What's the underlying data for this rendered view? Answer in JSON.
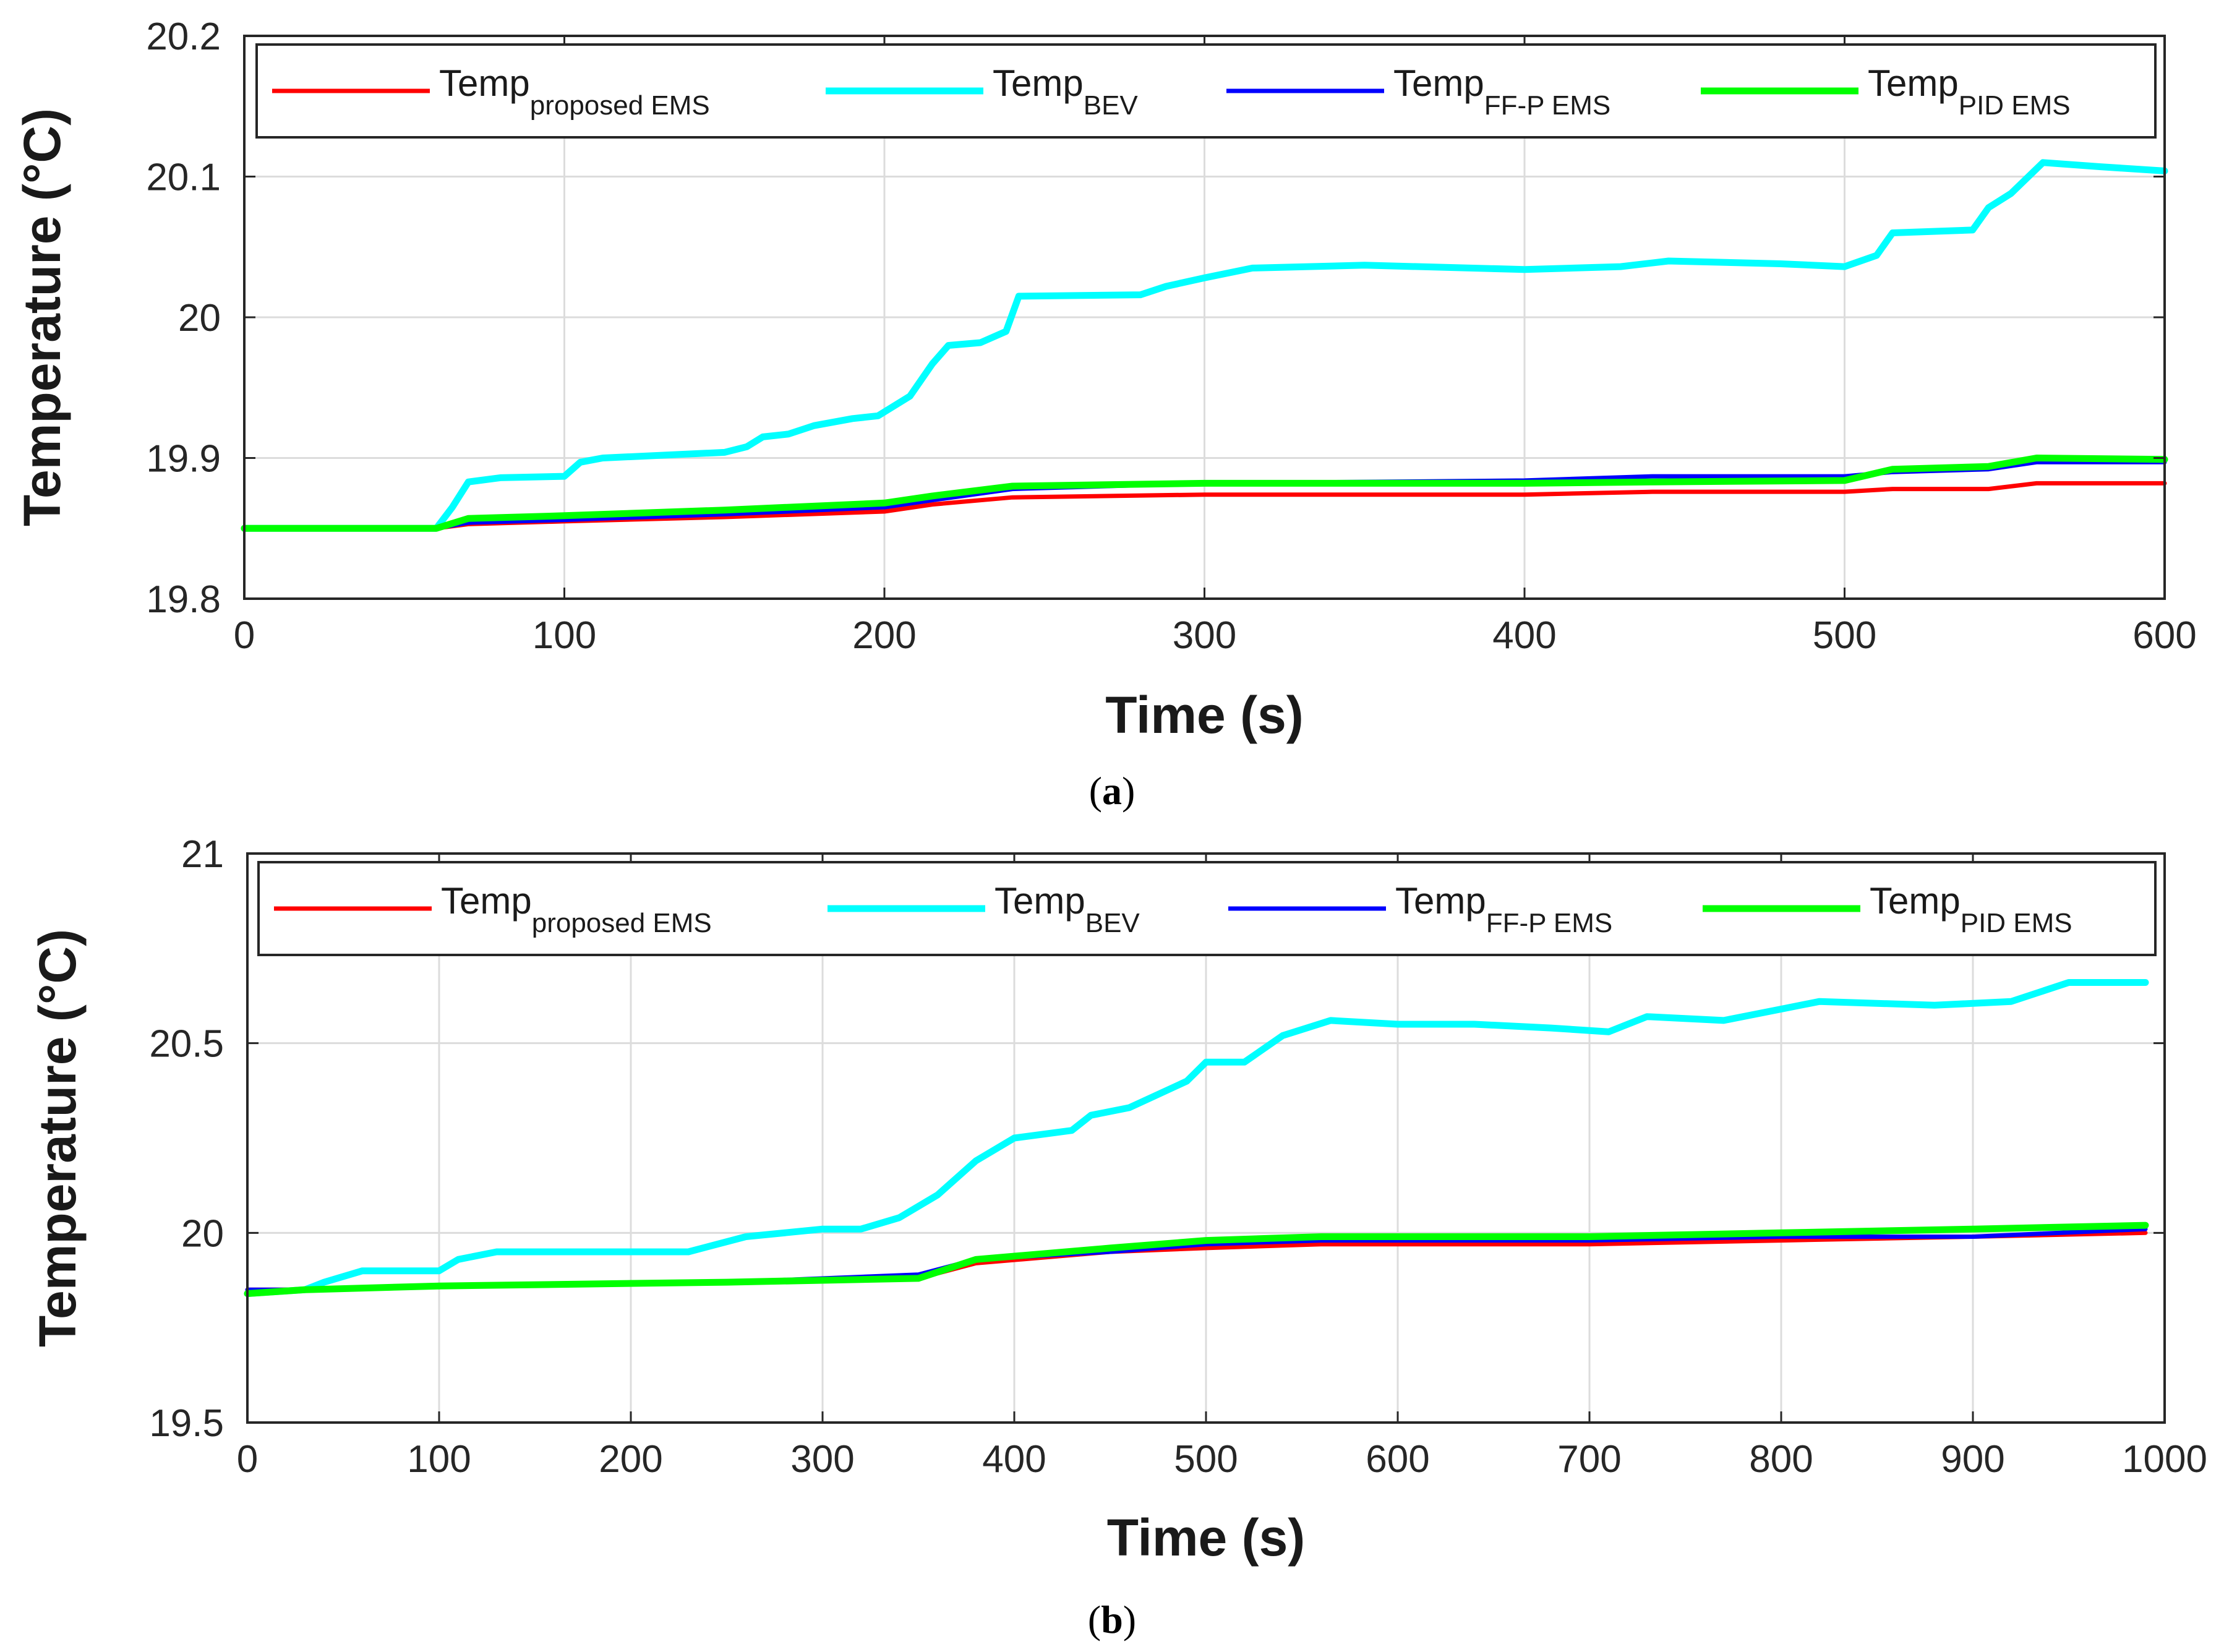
{
  "chart_data": [
    {
      "type": "line",
      "panel_label": "a",
      "xlabel": "Time (s)",
      "ylabel": "Temperature (°C)",
      "xlim": [
        0,
        600
      ],
      "ylim": [
        19.8,
        20.2
      ],
      "xticks": [
        0,
        100,
        200,
        300,
        400,
        500,
        600
      ],
      "yticks": [
        19.8,
        19.9,
        20,
        20.1,
        20.2
      ],
      "grid": true,
      "legend_placement": "top",
      "series": [
        {
          "name": "Temp",
          "sub": "proposed EMS",
          "color": "#ff0000",
          "points": [
            [
              0,
              19.85
            ],
            [
              60,
              19.85
            ],
            [
              70,
              19.853
            ],
            [
              100,
              19.855
            ],
            [
              150,
              19.858
            ],
            [
              200,
              19.862
            ],
            [
              215,
              19.867
            ],
            [
              240,
              19.872
            ],
            [
              300,
              19.874
            ],
            [
              400,
              19.874
            ],
            [
              440,
              19.876
            ],
            [
              500,
              19.876
            ],
            [
              515,
              19.878
            ],
            [
              545,
              19.878
            ],
            [
              560,
              19.882
            ],
            [
              600,
              19.882
            ]
          ]
        },
        {
          "name": "Temp",
          "sub": "BEV",
          "color": "#00ffff",
          "points": [
            [
              0,
              19.85
            ],
            [
              60,
              19.85
            ],
            [
              65,
              19.865
            ],
            [
              70,
              19.883
            ],
            [
              80,
              19.886
            ],
            [
              100,
              19.887
            ],
            [
              105,
              19.897
            ],
            [
              112,
              19.9
            ],
            [
              150,
              19.904
            ],
            [
              157,
              19.908
            ],
            [
              162,
              19.915
            ],
            [
              170,
              19.917
            ],
            [
              178,
              19.923
            ],
            [
              190,
              19.928
            ],
            [
              198,
              19.93
            ],
            [
              208,
              19.944
            ],
            [
              215,
              19.967
            ],
            [
              220,
              19.98
            ],
            [
              230,
              19.982
            ],
            [
              238,
              19.99
            ],
            [
              242,
              20.015
            ],
            [
              280,
              20.016
            ],
            [
              288,
              20.022
            ],
            [
              300,
              20.028
            ],
            [
              315,
              20.035
            ],
            [
              350,
              20.037
            ],
            [
              400,
              20.034
            ],
            [
              430,
              20.036
            ],
            [
              445,
              20.04
            ],
            [
              480,
              20.038
            ],
            [
              500,
              20.036
            ],
            [
              510,
              20.044
            ],
            [
              515,
              20.06
            ],
            [
              540,
              20.062
            ],
            [
              545,
              20.078
            ],
            [
              552,
              20.088
            ],
            [
              562,
              20.11
            ],
            [
              580,
              20.107
            ],
            [
              600,
              20.104
            ]
          ]
        },
        {
          "name": "Temp",
          "sub": "FF-P EMS",
          "color": "#0000ff",
          "points": [
            [
              0,
              19.85
            ],
            [
              60,
              19.85
            ],
            [
              70,
              19.854
            ],
            [
              100,
              19.856
            ],
            [
              150,
              19.86
            ],
            [
              200,
              19.865
            ],
            [
              215,
              19.87
            ],
            [
              240,
              19.878
            ],
            [
              300,
              19.882
            ],
            [
              400,
              19.884
            ],
            [
              440,
              19.887
            ],
            [
              500,
              19.887
            ],
            [
              515,
              19.89
            ],
            [
              545,
              19.892
            ],
            [
              560,
              19.897
            ],
            [
              600,
              19.897
            ]
          ]
        },
        {
          "name": "Temp",
          "sub": "PID EMS",
          "color": "#00ff00",
          "points": [
            [
              0,
              19.85
            ],
            [
              60,
              19.85
            ],
            [
              70,
              19.857
            ],
            [
              100,
              19.859
            ],
            [
              150,
              19.863
            ],
            [
              200,
              19.868
            ],
            [
              215,
              19.873
            ],
            [
              240,
              19.88
            ],
            [
              300,
              19.882
            ],
            [
              400,
              19.882
            ],
            [
              440,
              19.883
            ],
            [
              500,
              19.884
            ],
            [
              515,
              19.892
            ],
            [
              545,
              19.894
            ],
            [
              560,
              19.9
            ],
            [
              600,
              19.899
            ]
          ]
        }
      ],
      "legend": [
        {
          "text": "Temp",
          "sub": "proposed EMS"
        },
        {
          "text": "Temp",
          "sub": "BEV"
        },
        {
          "text": "Temp",
          "sub": "FF-P EMS"
        },
        {
          "text": "Temp",
          "sub": "PID EMS"
        }
      ]
    },
    {
      "type": "line",
      "panel_label": "b",
      "xlabel": "Time (s)",
      "ylabel": "Temperature (°C)",
      "xlim": [
        0,
        1000
      ],
      "ylim": [
        19.5,
        21
      ],
      "xticks": [
        0,
        100,
        200,
        300,
        400,
        500,
        600,
        700,
        800,
        900,
        1000
      ],
      "yticks": [
        19.5,
        20,
        20.5,
        21
      ],
      "grid": true,
      "legend_placement": "top",
      "series": [
        {
          "name": "Temp",
          "sub": "proposed EMS",
          "color": "#ff0000",
          "points": [
            [
              0,
              19.85
            ],
            [
              30,
              19.85
            ],
            [
              100,
              19.86
            ],
            [
              250,
              19.87
            ],
            [
              350,
              19.88
            ],
            [
              380,
              19.92
            ],
            [
              450,
              19.95
            ],
            [
              500,
              19.96
            ],
            [
              560,
              19.97
            ],
            [
              700,
              19.97
            ],
            [
              800,
              19.98
            ],
            [
              900,
              19.99
            ],
            [
              990,
              20.0
            ]
          ]
        },
        {
          "name": "Temp",
          "sub": "BEV",
          "color": "#00ffff",
          "points": [
            [
              0,
              19.84
            ],
            [
              30,
              19.85
            ],
            [
              40,
              19.87
            ],
            [
              60,
              19.9
            ],
            [
              100,
              19.9
            ],
            [
              110,
              19.93
            ],
            [
              130,
              19.95
            ],
            [
              230,
              19.95
            ],
            [
              260,
              19.99
            ],
            [
              300,
              20.01
            ],
            [
              320,
              20.01
            ],
            [
              340,
              20.04
            ],
            [
              360,
              20.1
            ],
            [
              380,
              20.19
            ],
            [
              400,
              20.25
            ],
            [
              430,
              20.27
            ],
            [
              440,
              20.31
            ],
            [
              460,
              20.33
            ],
            [
              490,
              20.4
            ],
            [
              500,
              20.45
            ],
            [
              520,
              20.45
            ],
            [
              540,
              20.52
            ],
            [
              565,
              20.56
            ],
            [
              600,
              20.55
            ],
            [
              640,
              20.55
            ],
            [
              680,
              20.54
            ],
            [
              710,
              20.53
            ],
            [
              730,
              20.57
            ],
            [
              770,
              20.56
            ],
            [
              800,
              20.59
            ],
            [
              820,
              20.61
            ],
            [
              880,
              20.6
            ],
            [
              920,
              20.61
            ],
            [
              950,
              20.66
            ],
            [
              990,
              20.66
            ]
          ]
        },
        {
          "name": "Temp",
          "sub": "FF-P EMS",
          "color": "#0000ff",
          "points": [
            [
              0,
              19.85
            ],
            [
              30,
              19.85
            ],
            [
              100,
              19.86
            ],
            [
              250,
              19.87
            ],
            [
              350,
              19.89
            ],
            [
              380,
              19.93
            ],
            [
              450,
              19.95
            ],
            [
              500,
              19.97
            ],
            [
              560,
              19.98
            ],
            [
              700,
              19.98
            ],
            [
              800,
              19.99
            ],
            [
              900,
              19.99
            ],
            [
              990,
              20.01
            ]
          ]
        },
        {
          "name": "Temp",
          "sub": "PID EMS",
          "color": "#00ff00",
          "points": [
            [
              0,
              19.84
            ],
            [
              30,
              19.85
            ],
            [
              100,
              19.86
            ],
            [
              250,
              19.87
            ],
            [
              350,
              19.88
            ],
            [
              380,
              19.93
            ],
            [
              450,
              19.96
            ],
            [
              500,
              19.98
            ],
            [
              560,
              19.99
            ],
            [
              700,
              19.99
            ],
            [
              800,
              20.0
            ],
            [
              900,
              20.01
            ],
            [
              990,
              20.02
            ]
          ]
        }
      ],
      "legend": [
        {
          "text": "Temp",
          "sub": "proposed EMS"
        },
        {
          "text": "Temp",
          "sub": "BEV"
        },
        {
          "text": "Temp",
          "sub": "FF-P EMS"
        },
        {
          "text": "Temp",
          "sub": "PID EMS"
        }
      ]
    }
  ]
}
